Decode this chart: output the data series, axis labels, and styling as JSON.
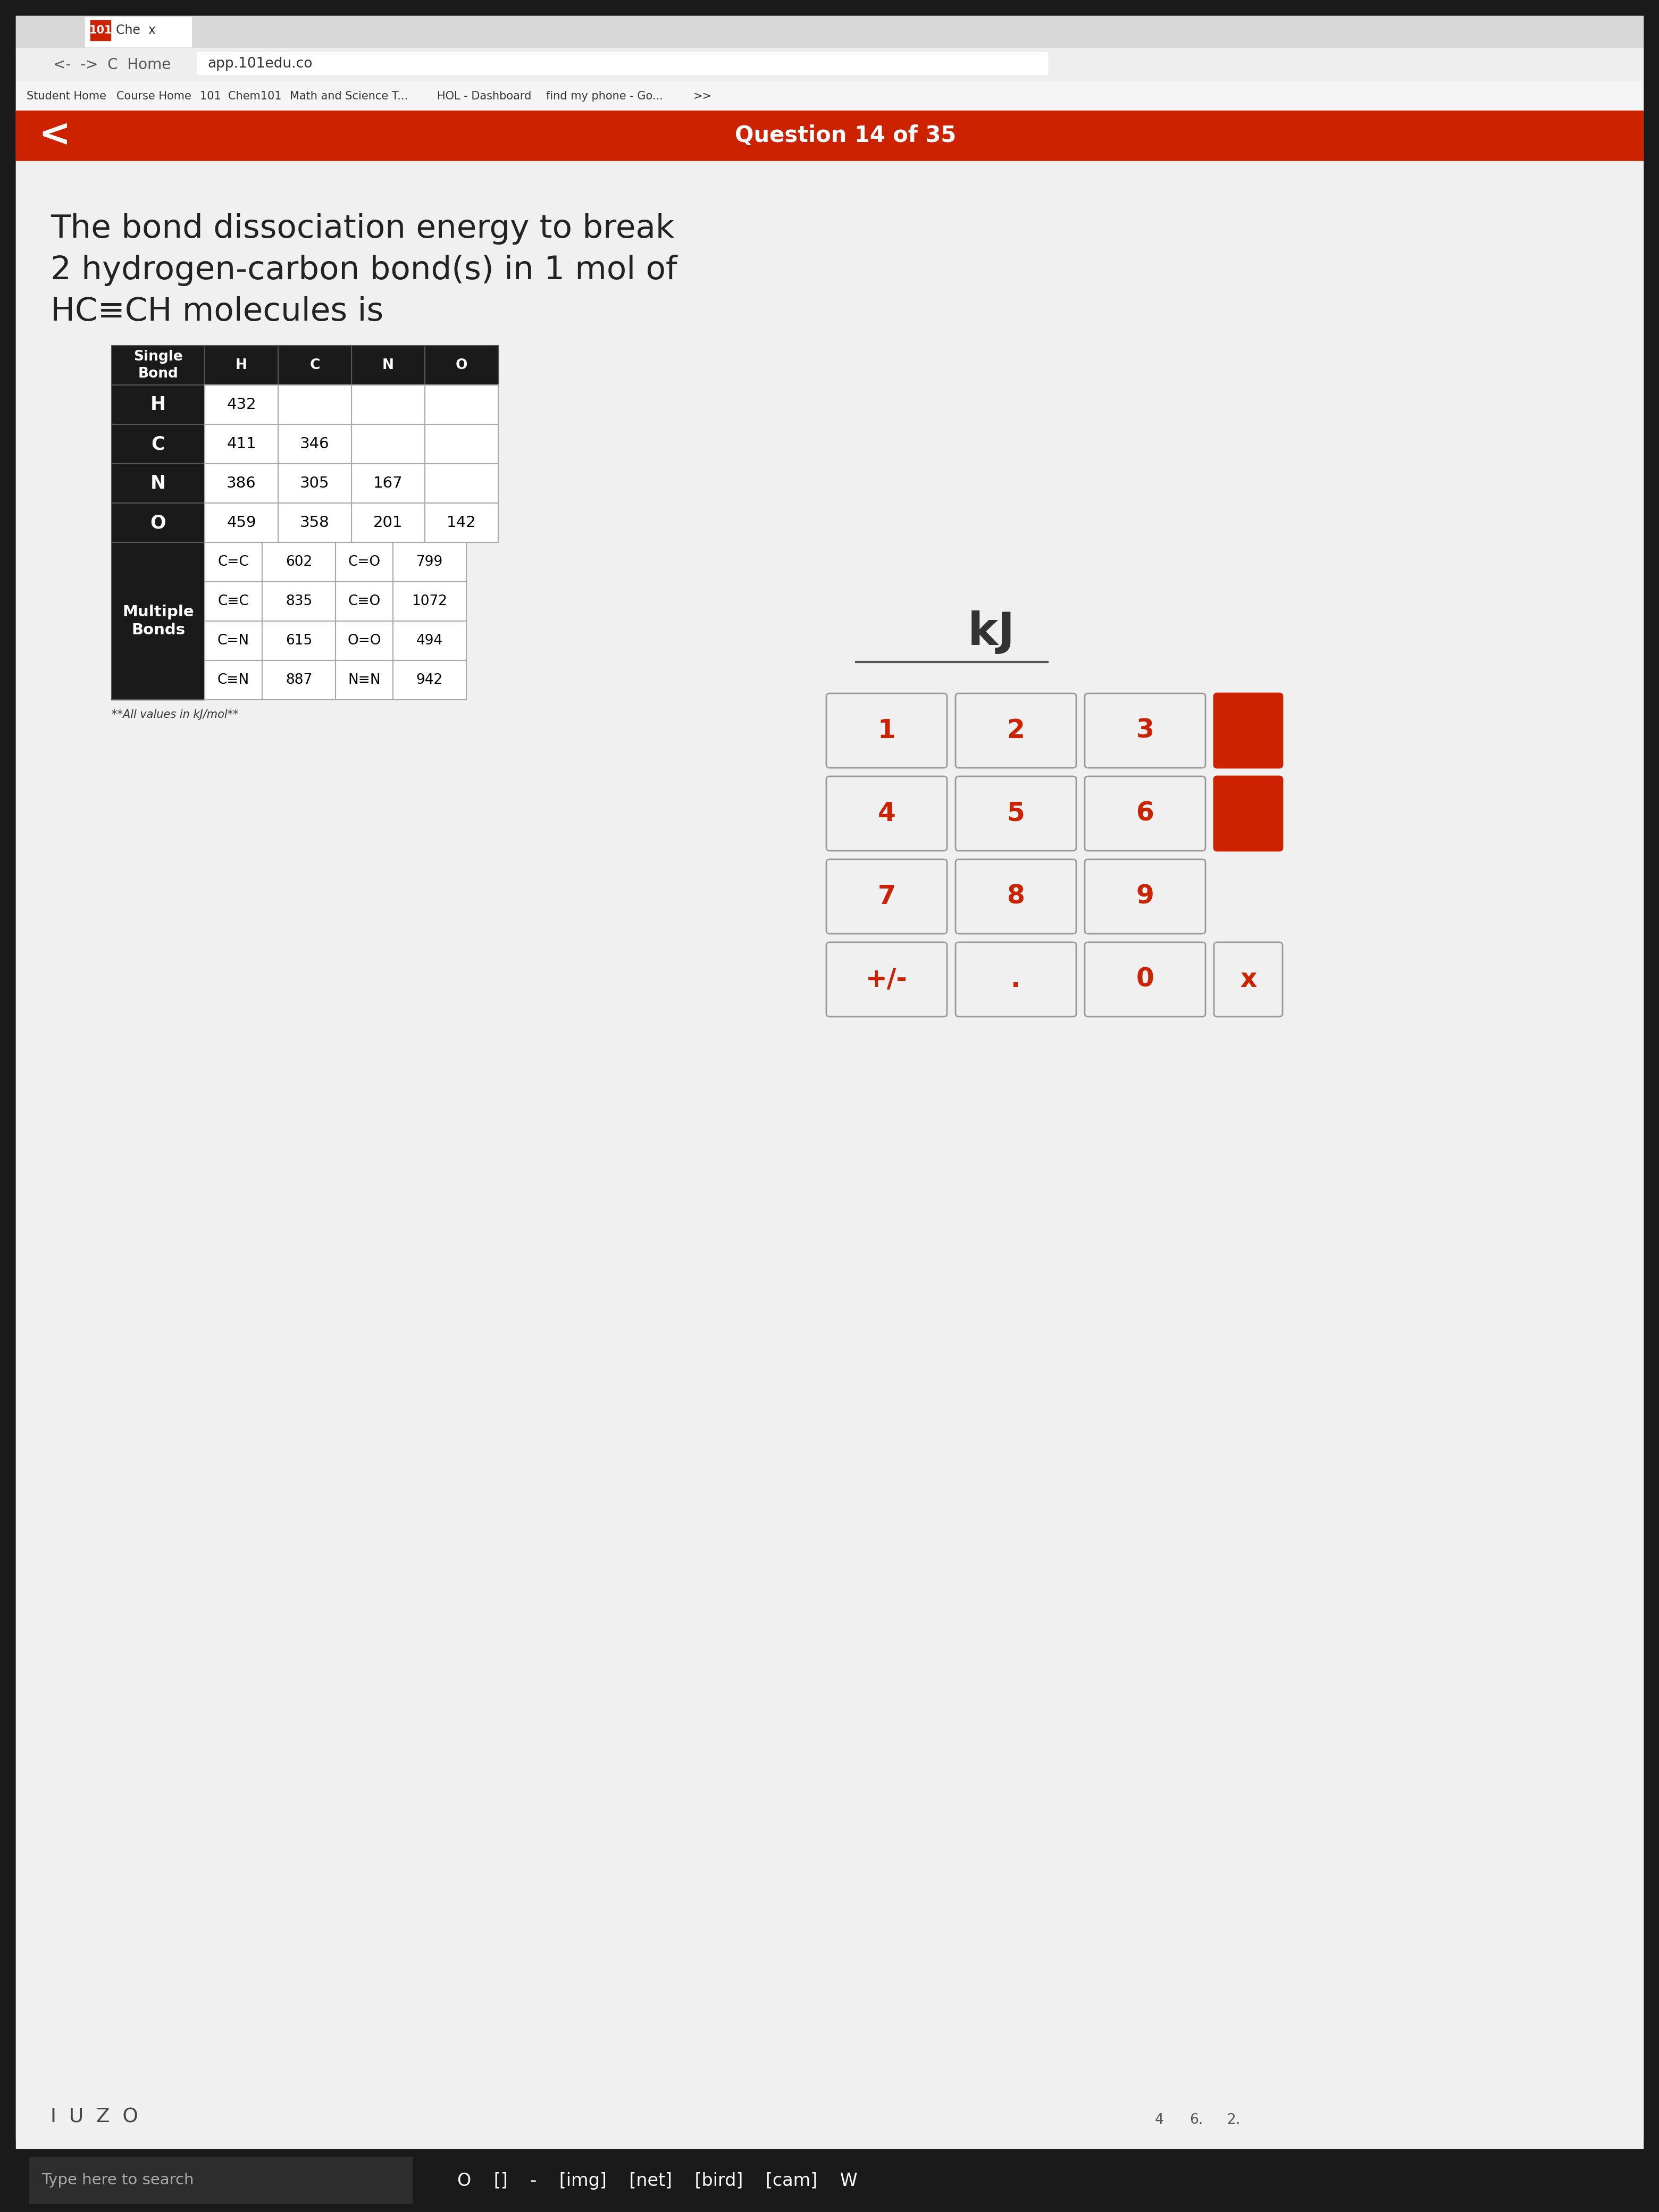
{
  "title_line1": "The bond dissociation energy to break",
  "title_line2": "2 hydrogen-carbon bond(s) in 1 mol of",
  "title_line3": "HC≡CH molecules is",
  "question_header": "Question 14 of 35",
  "table_header_bg": "#1a1a1a",
  "table_header_fg": "#ffffff",
  "table_row_label_bg": "#1a1a1a",
  "table_row_label_fg": "#ffffff",
  "table_cell_bg": "#ffffff",
  "table_cell_fg": "#000000",
  "single_bond_rows": [
    "H",
    "C",
    "N",
    "O"
  ],
  "single_bond_cols": [
    "H",
    "C",
    "N",
    "O"
  ],
  "single_bond_data": [
    [
      432,
      null,
      null,
      null
    ],
    [
      411,
      346,
      null,
      null
    ],
    [
      386,
      305,
      167,
      null
    ],
    [
      459,
      358,
      201,
      142
    ]
  ],
  "multiple_bonds_data": [
    [
      "C=C",
      602,
      "C=O",
      799
    ],
    [
      "C≡C",
      835,
      "C≡O",
      1072
    ],
    [
      "C=N",
      615,
      "O=O",
      494
    ],
    [
      "C≡N",
      887,
      "N≡N",
      942
    ]
  ],
  "footnote": "**All values in kJ/mol**",
  "kj_label": "kJ",
  "input_line_color": "#555555",
  "button_bg": "#f0f0f0",
  "button_border": "#999999",
  "button_text_color": "#cc2200",
  "button_labels": [
    "1",
    "2",
    "3",
    "4",
    "5",
    "6",
    "7",
    "8",
    "9",
    "+/-",
    ".",
    "0"
  ],
  "red_button_color": "#cc2200",
  "taskbar_bg": "#1a1a1a",
  "taskbar_fg": "#ffffff",
  "outer_bg": "#1a1a1a",
  "browser_bg": "#f0f0f0",
  "tab_bar_bg": "#d8d8d8",
  "url_bar_bg": "#eeeeee",
  "bookmarks_bg": "#f5f5f5",
  "red_header_bg": "#cc2200",
  "content_bg": "#f0f0f0"
}
